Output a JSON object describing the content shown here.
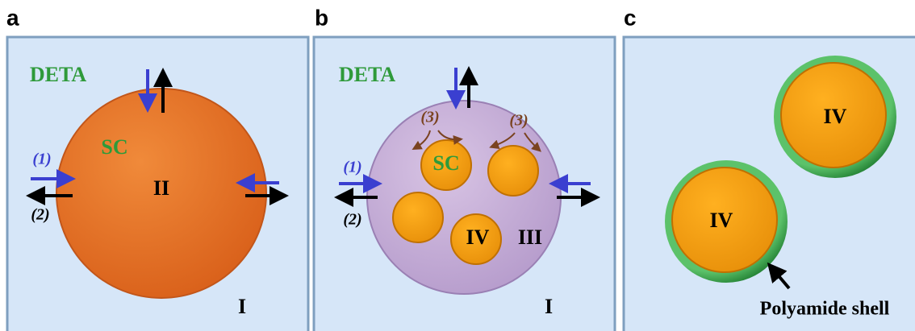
{
  "panels": [
    {
      "label": "a",
      "texts": [
        "DETA",
        "SC",
        "II",
        "(1)",
        "(2)",
        "I"
      ]
    },
    {
      "label": "b",
      "texts": [
        "DETA",
        "(3)",
        "(3)",
        "SC",
        "(1)",
        "(2)",
        "IV",
        "III",
        "I"
      ]
    },
    {
      "label": "c",
      "texts": [
        "IV",
        "IV",
        "Polyamide shell"
      ]
    }
  ]
}
